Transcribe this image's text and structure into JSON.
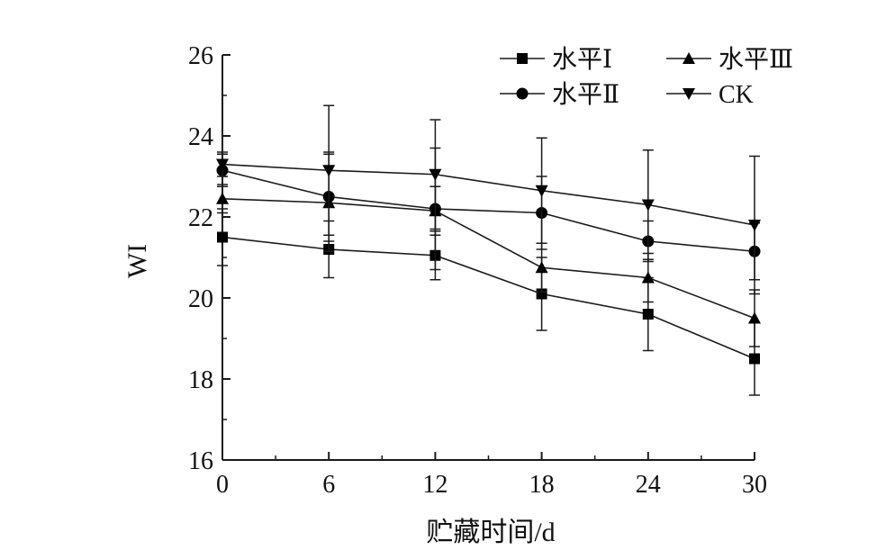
{
  "chart_data": {
    "type": "line",
    "title": "",
    "xlabel": "贮藏时间/d",
    "ylabel": "WI",
    "x": [
      0,
      6,
      12,
      18,
      24,
      30
    ],
    "xticks": [
      "0",
      "6",
      "12",
      "18",
      "24",
      "30"
    ],
    "yticks": [
      "16",
      "18",
      "20",
      "22",
      "24",
      "26"
    ],
    "xlim": [
      0,
      30
    ],
    "ylim": [
      16,
      26
    ],
    "grid": false,
    "legend_position": "top-right",
    "series": [
      {
        "name": "水平Ⅰ",
        "marker": "square",
        "values": [
          21.5,
          21.2,
          21.05,
          20.1,
          19.6,
          18.5
        ],
        "error": [
          0.7,
          0.7,
          0.6,
          0.9,
          0.9,
          0.9
        ]
      },
      {
        "name": "水平Ⅱ",
        "marker": "circle",
        "values": [
          23.15,
          22.5,
          22.2,
          22.1,
          21.4,
          21.15
        ],
        "error": [
          0.4,
          1.1,
          1.5,
          0.9,
          0.5,
          0.7
        ]
      },
      {
        "name": "水平Ⅲ",
        "marker": "triangle-up",
        "values": [
          22.45,
          22.35,
          22.15,
          20.75,
          20.5,
          19.5
        ],
        "error": [
          0.35,
          1.2,
          0.6,
          0.6,
          0.6,
          0.7
        ]
      },
      {
        "name": "CK",
        "marker": "triangle-down",
        "values": [
          23.3,
          23.15,
          23.05,
          22.65,
          22.3,
          21.8
        ],
        "error": [
          0.3,
          1.6,
          1.35,
          1.3,
          1.35,
          1.7
        ]
      }
    ],
    "colors": {
      "line": "#1a1a1a",
      "marker": "#000000"
    }
  }
}
